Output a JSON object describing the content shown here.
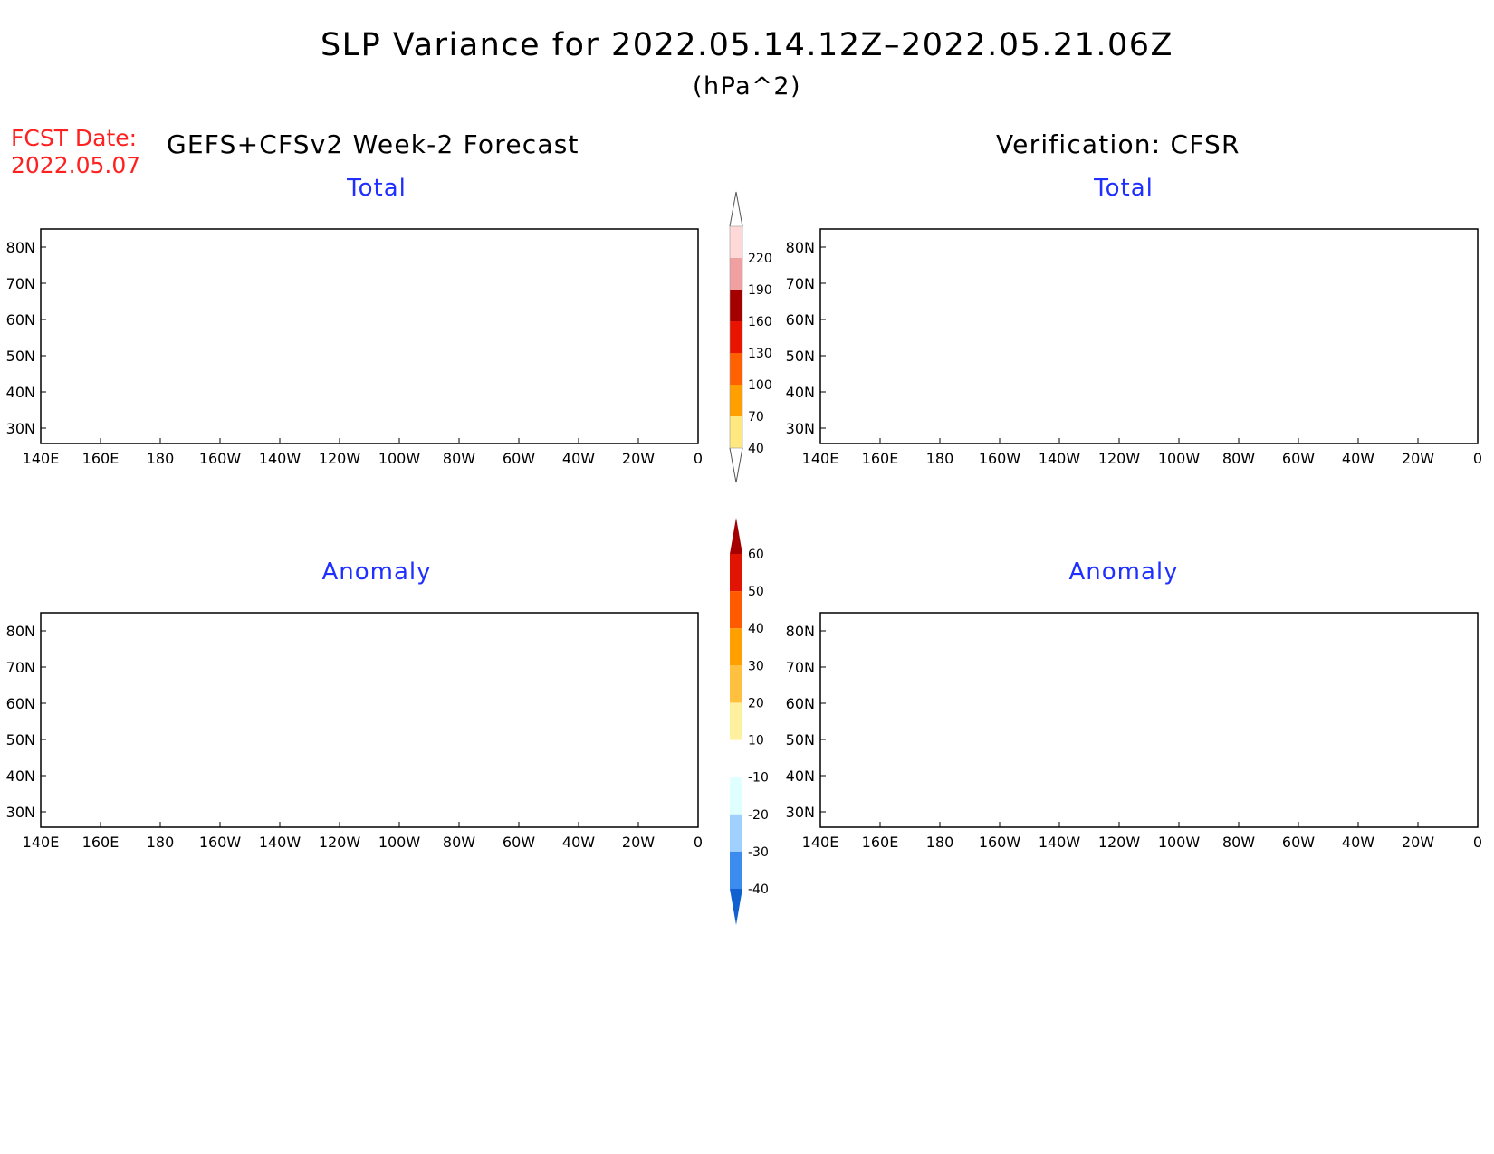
{
  "title": "SLP Variance for 2022.05.14.12Z–2022.05.21.06Z",
  "units": "(hPa^2)",
  "fcst_date_label": "FCST Date:",
  "fcst_date_value": "2022.05.07",
  "left_heading": "GEFS+CFSv2 Week-2 Forecast",
  "right_heading": "Verification: CFSR",
  "panels": {
    "forecast_total": {
      "title": "Total"
    },
    "verification_total": {
      "title": "Total"
    },
    "forecast_anomaly": {
      "title": "Anomaly"
    },
    "verification_anomaly": {
      "title": "Anomaly"
    }
  },
  "axes": {
    "lon_labels": [
      "140E",
      "160E",
      "180",
      "160W",
      "140W",
      "120W",
      "100W",
      "80W",
      "60W",
      "40W",
      "20W",
      "0"
    ],
    "lat_labels": [
      "80N",
      "70N",
      "60N",
      "50N",
      "40N",
      "30N"
    ]
  },
  "colorbars": {
    "total": {
      "levels": [
        "40",
        "70",
        "100",
        "130",
        "160",
        "190",
        "220"
      ],
      "colors": [
        "#ffe880",
        "#ffa000",
        "#ff6000",
        "#e81400",
        "#a50000",
        "#f0a0a0",
        "#ffd8d8"
      ]
    },
    "anomaly": {
      "levels": [
        "60",
        "50",
        "40",
        "30",
        "20",
        "10",
        "-10",
        "-20",
        "-30",
        "-40"
      ],
      "colors": [
        "#a50000",
        "#e01400",
        "#ff5a00",
        "#ffa000",
        "#ffc040",
        "#fff0a0",
        "#ffffff",
        "#e0ffff",
        "#a0d0ff",
        "#3c8cf0",
        "#1060d0"
      ]
    }
  }
}
